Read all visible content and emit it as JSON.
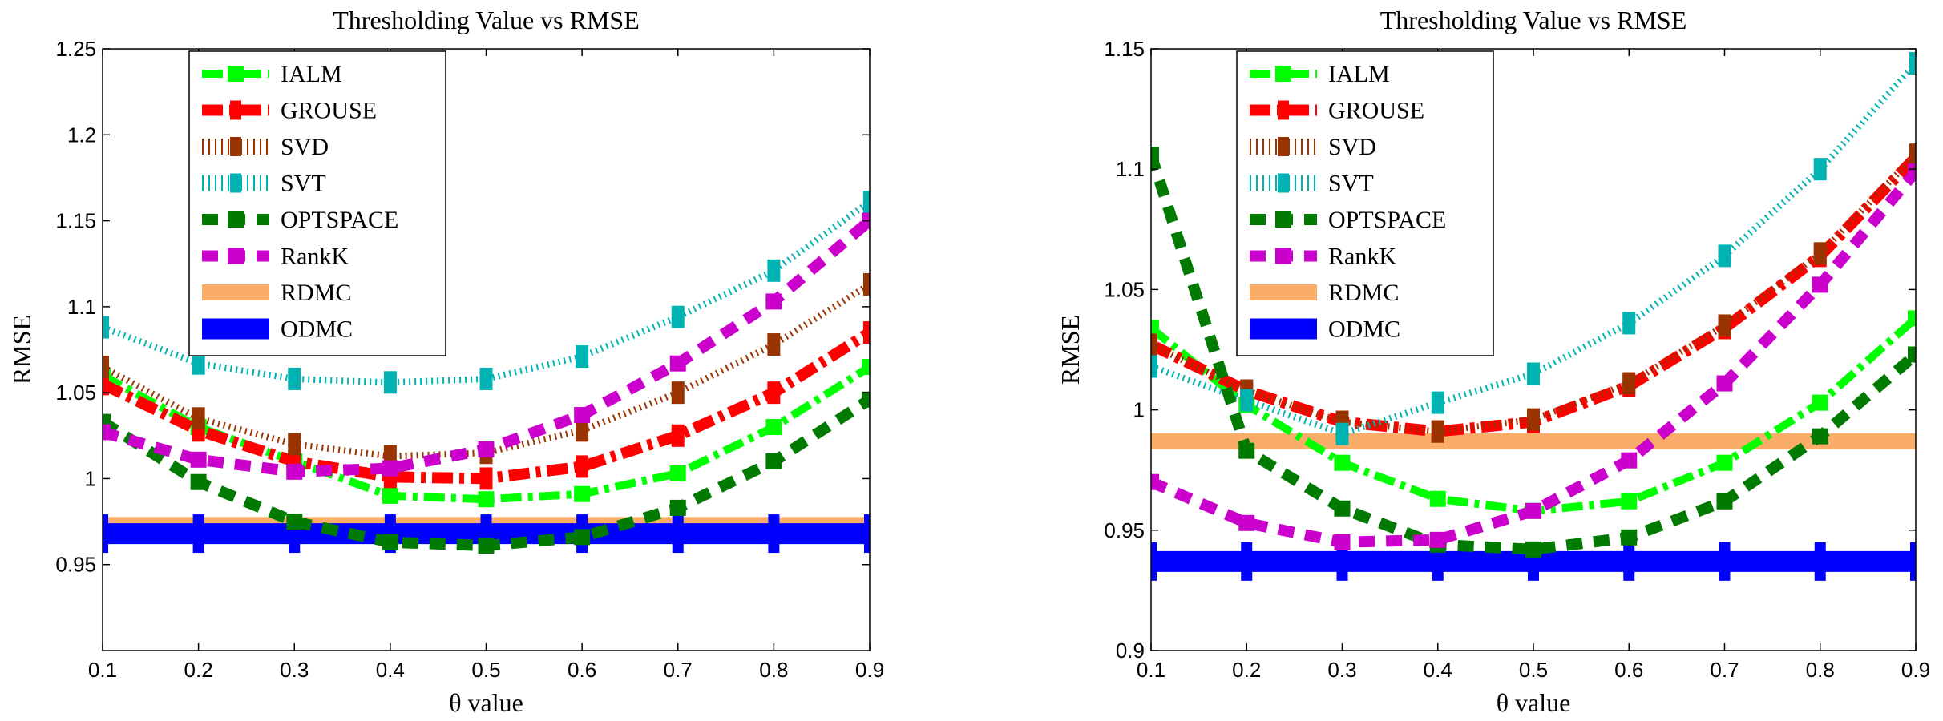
{
  "chart_data": [
    {
      "type": "line",
      "title": "Thresholding Value vs RMSE",
      "xlabel": "θ value",
      "ylabel": "RMSE",
      "xlim": [
        0.1,
        0.9
      ],
      "ylim": [
        0.9,
        1.25
      ],
      "xticks": [
        "0.1",
        "0.2",
        "0.3",
        "0.4",
        "0.5",
        "0.6",
        "0.7",
        "0.8",
        "0.9"
      ],
      "yticks": [
        "0.95",
        "1",
        "1.05",
        "1.1",
        "1.15",
        "1.2",
        "1.25"
      ],
      "grid": false,
      "legend_position": "top-left",
      "x": [
        0.1,
        0.2,
        0.3,
        0.4,
        0.5,
        0.6,
        0.7,
        0.8,
        0.9
      ],
      "series": [
        {
          "name": "IALM",
          "color": "#00ff00",
          "style": "dashdot",
          "values": [
            1.06,
            1.03,
            1.01,
            0.99,
            0.988,
            0.991,
            1.003,
            1.03,
            1.065
          ]
        },
        {
          "name": "GROUSE",
          "color": "#ff0000",
          "style": "dashdot",
          "values": [
            1.055,
            1.028,
            1.01,
            1.001,
            1.0,
            1.007,
            1.025,
            1.05,
            1.085
          ]
        },
        {
          "name": "SVD",
          "color": "#993300",
          "style": "dotted",
          "values": [
            1.065,
            1.035,
            1.02,
            1.013,
            1.015,
            1.028,
            1.05,
            1.078,
            1.113
          ]
        },
        {
          "name": "SVT",
          "color": "#00b3b3",
          "style": "dotted",
          "values": [
            1.088,
            1.067,
            1.058,
            1.056,
            1.058,
            1.071,
            1.094,
            1.121,
            1.161
          ]
        },
        {
          "name": "OPTSPACE",
          "color": "#007a00",
          "style": "dashed",
          "values": [
            1.033,
            0.998,
            0.975,
            0.963,
            0.961,
            0.966,
            0.983,
            1.01,
            1.046
          ]
        },
        {
          "name": "RankK",
          "color": "#cc00cc",
          "style": "dashed",
          "values": [
            1.027,
            1.011,
            1.004,
            1.006,
            1.017,
            1.037,
            1.067,
            1.103,
            1.15
          ]
        },
        {
          "name": "RDMC",
          "color": "#f9ad68",
          "style": "solid",
          "values": [
            0.973,
            0.973,
            0.973,
            0.973,
            0.973,
            0.973,
            0.973,
            0.973,
            0.973
          ]
        },
        {
          "name": "ODMC",
          "color": "#0000ff",
          "style": "solid",
          "values": [
            0.968,
            0.968,
            0.968,
            0.968,
            0.968,
            0.968,
            0.968,
            0.968,
            0.968
          ]
        }
      ]
    },
    {
      "type": "line",
      "title": "Thresholding Value vs RMSE",
      "xlabel": "θ value",
      "ylabel": "RMSE",
      "xlim": [
        0.1,
        0.9
      ],
      "ylim": [
        0.9,
        1.15
      ],
      "xticks": [
        "0.1",
        "0.2",
        "0.3",
        "0.4",
        "0.5",
        "0.6",
        "0.7",
        "0.8",
        "0.9"
      ],
      "yticks": [
        "0.9",
        "0.95",
        "1",
        "1.05",
        "1.1",
        "1.15"
      ],
      "grid": false,
      "legend_position": "top-left",
      "x": [
        0.1,
        0.2,
        0.3,
        0.4,
        0.5,
        0.6,
        0.7,
        0.8,
        0.9
      ],
      "series": [
        {
          "name": "IALM",
          "color": "#00ff00",
          "style": "dashdot",
          "values": [
            1.034,
            1.002,
            0.978,
            0.963,
            0.958,
            0.962,
            0.978,
            1.003,
            1.038
          ]
        },
        {
          "name": "GROUSE",
          "color": "#ff0000",
          "style": "dashdot",
          "values": [
            1.027,
            1.008,
            0.995,
            0.991,
            0.995,
            1.01,
            1.034,
            1.064,
            1.105
          ]
        },
        {
          "name": "SVD",
          "color": "#993300",
          "style": "dotted",
          "values": [
            1.027,
            1.008,
            0.995,
            0.991,
            0.996,
            1.011,
            1.035,
            1.065,
            1.106
          ]
        },
        {
          "name": "SVT",
          "color": "#00b3b3",
          "style": "dotted",
          "values": [
            1.018,
            1.004,
            0.99,
            1.003,
            1.015,
            1.036,
            1.064,
            1.1,
            1.144
          ]
        },
        {
          "name": "OPTSPACE",
          "color": "#007a00",
          "style": "dashed",
          "values": [
            1.106,
            0.983,
            0.959,
            0.944,
            0.942,
            0.947,
            0.962,
            0.989,
            1.023
          ]
        },
        {
          "name": "RankK",
          "color": "#cc00cc",
          "style": "dashed",
          "values": [
            0.97,
            0.953,
            0.945,
            0.946,
            0.958,
            0.979,
            1.011,
            1.052,
            1.099
          ]
        },
        {
          "name": "RDMC",
          "color": "#f9ad68",
          "style": "solid",
          "values": [
            0.987,
            0.987,
            0.987,
            0.987,
            0.987,
            0.987,
            0.987,
            0.987,
            0.987
          ]
        },
        {
          "name": "ODMC",
          "color": "#0000ff",
          "style": "solid",
          "values": [
            0.937,
            0.937,
            0.937,
            0.937,
            0.937,
            0.937,
            0.937,
            0.937,
            0.937
          ]
        }
      ]
    }
  ]
}
